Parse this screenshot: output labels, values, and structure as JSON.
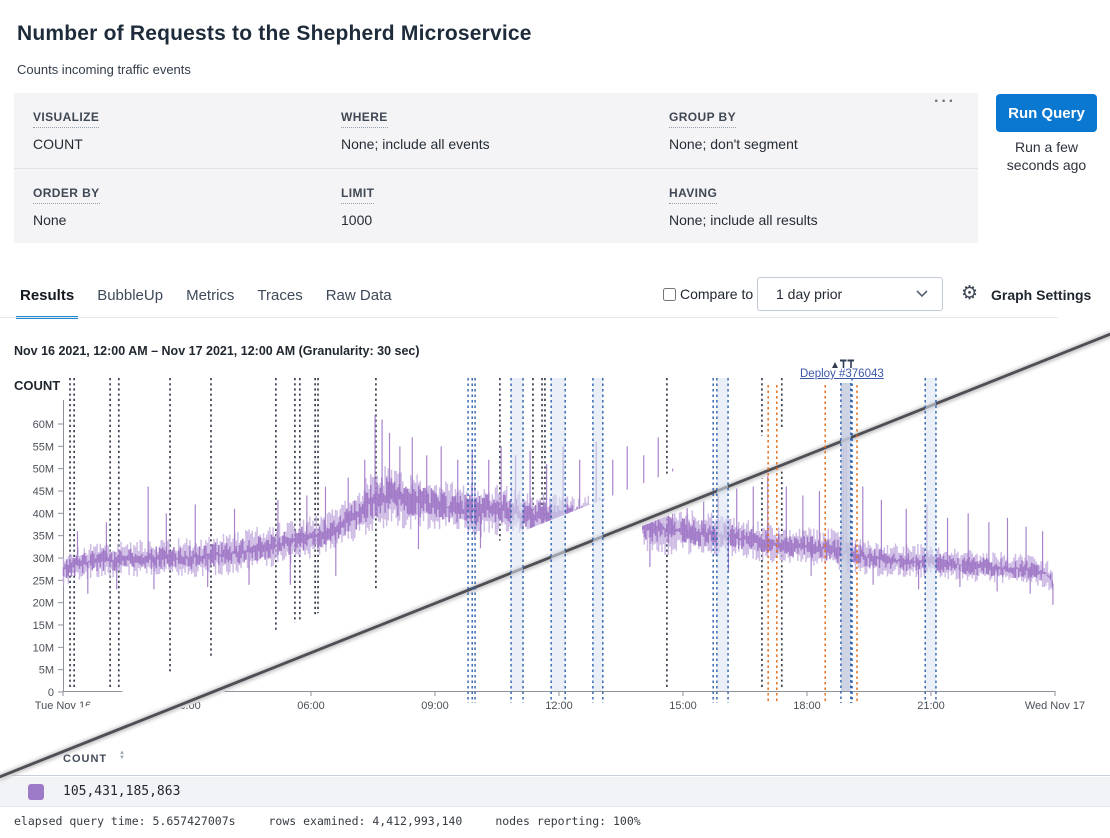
{
  "header": {
    "title": "Number of Requests to the Shepherd Microservice",
    "subtitle": "Counts incoming traffic events"
  },
  "query_builder": {
    "fields": [
      {
        "label": "VISUALIZE",
        "value": "COUNT"
      },
      {
        "label": "WHERE",
        "value": "None; include all events"
      },
      {
        "label": "GROUP BY",
        "value": "None; don't segment"
      },
      {
        "label": "ORDER BY",
        "value": "None"
      },
      {
        "label": "LIMIT",
        "value": "1000"
      },
      {
        "label": "HAVING",
        "value": "None; include all results"
      }
    ],
    "overflow_menu": "···",
    "run_button": "Run Query",
    "run_status": "Run a few seconds ago"
  },
  "tabs": {
    "items": [
      "Results",
      "BubbleUp",
      "Metrics",
      "Traces",
      "Raw Data"
    ],
    "active": "Results"
  },
  "compare": {
    "label": "Compare to",
    "checked": false,
    "dropdown_value": "1 day prior"
  },
  "graph_settings_label": "Graph Settings",
  "gear_icon": "⚙",
  "annotation": {
    "label": "Deploy #376043"
  },
  "chart_data": {
    "type": "line",
    "title": "Nov 16 2021, 12:00 AM – Nov 17 2021, 12:00 AM (Granularity: 30 sec)",
    "series_name": "COUNT",
    "y_unit": "M",
    "ylim_millions": [
      0,
      62
    ],
    "y_ticks_millions": [
      0,
      5,
      10,
      15,
      20,
      25,
      30,
      35,
      40,
      45,
      50,
      55,
      60
    ],
    "x_tick_hours": [
      0,
      3,
      6,
      9,
      12,
      15,
      18,
      21,
      24
    ],
    "x_tick_labels": [
      "Tue Nov 16",
      "03:00",
      "06:00",
      "09:00",
      "12:00",
      "15:00",
      "18:00",
      "21:00",
      "Wed Nov 17"
    ],
    "grid": false,
    "legend_position": "none",
    "total": "105,431,185,863",
    "colors": {
      "series": "#9f77c6",
      "series_light": "#c3abde",
      "deploy_marker": "#3b4252",
      "window_marker": "#2b5fad",
      "orange_marker": "#e2660f",
      "window_band": "#dbe4f3",
      "selected_band": "#c7cde0",
      "axis": "#8d929b",
      "tick_text": "#4b5058"
    },
    "band_keypoints": [
      [
        0,
        27.5,
        4
      ],
      [
        0.5,
        29,
        4
      ],
      [
        1,
        29.5,
        4.2
      ],
      [
        2,
        30,
        4.2
      ],
      [
        3,
        30,
        4.5
      ],
      [
        4,
        31,
        4.8
      ],
      [
        5,
        32.5,
        5
      ],
      [
        6,
        34.5,
        5
      ],
      [
        6.5,
        36,
        5
      ],
      [
        7,
        39,
        5.5
      ],
      [
        7.5,
        43,
        7
      ],
      [
        7.8,
        44,
        7.5
      ],
      [
        8.2,
        43,
        6.5
      ],
      [
        9,
        42,
        6
      ],
      [
        9.5,
        41,
        6
      ],
      [
        10,
        40.5,
        6
      ],
      [
        10.5,
        41,
        6
      ],
      [
        11,
        40,
        5.8
      ],
      [
        11.5,
        39.5,
        5.6
      ],
      [
        12,
        39,
        5.5
      ],
      [
        12.5,
        38.5,
        5.5
      ],
      [
        13,
        38.5,
        5.8
      ],
      [
        13.5,
        38,
        5.8
      ],
      [
        14,
        37.5,
        6
      ],
      [
        14.5,
        36.5,
        6
      ],
      [
        15,
        36,
        5.2
      ],
      [
        15.5,
        35.5,
        5
      ],
      [
        16,
        35,
        5
      ],
      [
        16.5,
        34.2,
        4.6
      ],
      [
        17,
        33.6,
        4.5
      ],
      [
        17.5,
        33,
        4.4
      ],
      [
        18,
        32.6,
        4.2
      ],
      [
        18.5,
        32.2,
        4.8
      ],
      [
        19,
        31,
        4.5
      ],
      [
        19.5,
        30,
        4.2
      ],
      [
        20,
        29.5,
        4
      ],
      [
        20.5,
        29.2,
        4
      ],
      [
        21,
        29,
        4
      ],
      [
        21.5,
        28.6,
        3.6
      ],
      [
        22,
        28.2,
        3.6
      ],
      [
        22.5,
        28,
        3.5
      ],
      [
        23,
        27.6,
        3.5
      ],
      [
        23.5,
        27.2,
        3.4
      ],
      [
        23.8,
        26.5,
        3.2
      ],
      [
        24,
        23.5,
        2.5
      ]
    ],
    "spikes_millions": [
      [
        0.35,
        36
      ],
      [
        1.05,
        38
      ],
      [
        2.06,
        46
      ],
      [
        2.5,
        40
      ],
      [
        3.2,
        42
      ],
      [
        4.15,
        41
      ],
      [
        5.2,
        43
      ],
      [
        5.9,
        44
      ],
      [
        6.35,
        46
      ],
      [
        6.9,
        48
      ],
      [
        7.3,
        52
      ],
      [
        7.55,
        62
      ],
      [
        7.72,
        61
      ],
      [
        7.9,
        58
      ],
      [
        8.15,
        55
      ],
      [
        8.45,
        57
      ],
      [
        8.8,
        53
      ],
      [
        9.15,
        55
      ],
      [
        9.55,
        52
      ],
      [
        9.9,
        54
      ],
      [
        10.3,
        52
      ],
      [
        10.6,
        55
      ],
      [
        10.95,
        53
      ],
      [
        11.3,
        54
      ],
      [
        11.7,
        51
      ],
      [
        12.1,
        55
      ],
      [
        12.5,
        52
      ],
      [
        12.9,
        56
      ],
      [
        13.3,
        52
      ],
      [
        13.65,
        55
      ],
      [
        14.05,
        53
      ],
      [
        14.4,
        57
      ],
      [
        14.75,
        50
      ],
      [
        15.1,
        50
      ],
      [
        15.5,
        48
      ],
      [
        15.85,
        52
      ],
      [
        16.3,
        47
      ],
      [
        16.7,
        46
      ],
      [
        17.05,
        50
      ],
      [
        17.5,
        46
      ],
      [
        17.9,
        44
      ],
      [
        18.3,
        45
      ],
      [
        18.88,
        60
      ],
      [
        18.95,
        57
      ],
      [
        19.35,
        46
      ],
      [
        19.8,
        43
      ],
      [
        20.4,
        41
      ],
      [
        20.9,
        42
      ],
      [
        21.4,
        39
      ],
      [
        21.9,
        40
      ],
      [
        22.4,
        38
      ],
      [
        22.85,
        39
      ],
      [
        23.3,
        37
      ],
      [
        23.7,
        36
      ]
    ],
    "dips_millions": [
      [
        0.6,
        22
      ],
      [
        1.3,
        23
      ],
      [
        2.2,
        23
      ],
      [
        3.5,
        23.5
      ],
      [
        4.5,
        24
      ],
      [
        5.5,
        24
      ],
      [
        6.6,
        26
      ],
      [
        8.6,
        32
      ],
      [
        10.1,
        30
      ],
      [
        12.3,
        30
      ],
      [
        14.2,
        28
      ],
      [
        16.1,
        27
      ],
      [
        18.1,
        26
      ],
      [
        19.6,
        24
      ],
      [
        20.7,
        23
      ],
      [
        21.7,
        23.5
      ],
      [
        22.6,
        22.5
      ],
      [
        23.4,
        22
      ],
      [
        23.95,
        19.5
      ]
    ],
    "markers": {
      "deploy_black_hours": [
        0.17,
        0.27,
        1.14,
        1.35,
        2.59,
        3.58,
        5.15,
        5.61,
        5.73,
        6.1,
        6.17,
        7.57,
        10.57,
        11.37,
        11.59,
        11.66,
        14.61,
        16.91,
        17.39
      ],
      "window_blue_hours": [
        9.8,
        9.9,
        9.97,
        15.73,
        19.09
      ],
      "window_blue_bands_hours": [
        [
          10.84,
          11.13
        ],
        [
          11.81,
          12.15
        ],
        [
          12.82,
          13.06
        ],
        [
          15.82,
          16.09
        ],
        [
          20.86,
          21.12
        ]
      ],
      "selected_band_hours": [
        18.82,
        19.06
      ],
      "orange_hours": [
        17.06,
        17.27,
        18.44,
        19.21
      ]
    }
  },
  "results_table": {
    "column": "COUNT",
    "row_value": "105,431,185,863",
    "swatch_color": "#9d7bc8"
  },
  "query_stats": {
    "elapsed": "elapsed query time: 5.657427007s",
    "rows": "rows examined: 4,412,993,140",
    "nodes": "nodes reporting: 100%"
  }
}
